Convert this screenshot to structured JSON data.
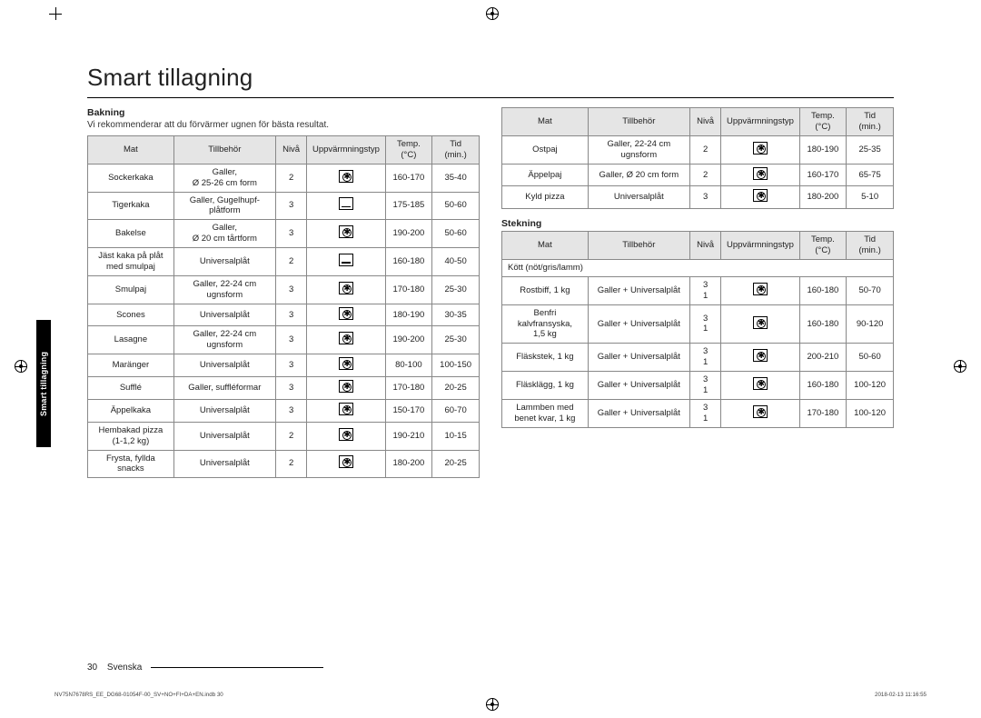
{
  "page": {
    "title": "Smart tillagning",
    "side_tab": "Smart tillagning",
    "page_number": "30",
    "language": "Svenska",
    "print_file": "NV75N7678RS_EE_DG68-01054F-00_SV+NO+FI+DA+EN.indb   30",
    "print_date": "2018-02-13   11:16:55"
  },
  "columns": {
    "mat": "Mat",
    "tillbehor": "Tillbehör",
    "niva": "Nivå",
    "uppvarmning": "Uppvärmningstyp",
    "temp": "Temp.",
    "temp_unit": "(°C)",
    "tid": "Tid",
    "tid_unit": "(min.)"
  },
  "icons": {
    "fan": "fan",
    "conv": "conventional"
  },
  "bakning": {
    "heading": "Bakning",
    "subtext": "Vi rekommenderar att du förvärmer ugnen för bästa resultat.",
    "rows": [
      {
        "mat": "Sockerkaka",
        "till": "Galler,\nØ 25-26 cm form",
        "niva": "2",
        "icon": "fan",
        "temp": "160-170",
        "tid": "35-40"
      },
      {
        "mat": "Tigerkaka",
        "till": "Galler, Gugelhupf-\nplåtform",
        "niva": "3",
        "icon": "conv",
        "temp": "175-185",
        "tid": "50-60"
      },
      {
        "mat": "Bakelse",
        "till": "Galler,\nØ 20 cm tårtform",
        "niva": "3",
        "icon": "fan",
        "temp": "190-200",
        "tid": "50-60"
      },
      {
        "mat": "Jäst kaka på plåt\nmed smulpaj",
        "till": "Universalplåt",
        "niva": "2",
        "icon": "conv",
        "temp": "160-180",
        "tid": "40-50"
      },
      {
        "mat": "Smulpaj",
        "till": "Galler, 22-24 cm\nugnsform",
        "niva": "3",
        "icon": "fan",
        "temp": "170-180",
        "tid": "25-30"
      },
      {
        "mat": "Scones",
        "till": "Universalplåt",
        "niva": "3",
        "icon": "fan",
        "temp": "180-190",
        "tid": "30-35"
      },
      {
        "mat": "Lasagne",
        "till": "Galler, 22-24 cm\nugnsform",
        "niva": "3",
        "icon": "fan",
        "temp": "190-200",
        "tid": "25-30"
      },
      {
        "mat": "Maränger",
        "till": "Universalplåt",
        "niva": "3",
        "icon": "fan",
        "temp": "80-100",
        "tid": "100-150"
      },
      {
        "mat": "Sufflé",
        "till": "Galler, suffléformar",
        "niva": "3",
        "icon": "fan",
        "temp": "170-180",
        "tid": "20-25"
      },
      {
        "mat": "Äppelkaka",
        "till": "Universalplåt",
        "niva": "3",
        "icon": "fan",
        "temp": "150-170",
        "tid": "60-70"
      },
      {
        "mat": "Hembakad pizza\n(1-1,2 kg)",
        "till": "Universalplåt",
        "niva": "2",
        "icon": "fan",
        "temp": "190-210",
        "tid": "10-15"
      },
      {
        "mat": "Frysta, fyllda\nsnacks",
        "till": "Universalplåt",
        "niva": "2",
        "icon": "fan",
        "temp": "180-200",
        "tid": "20-25"
      }
    ]
  },
  "bakning2": {
    "rows": [
      {
        "mat": "Ostpaj",
        "till": "Galler, 22-24 cm\nugnsform",
        "niva": "2",
        "icon": "fan",
        "temp": "180-190",
        "tid": "25-35"
      },
      {
        "mat": "Äppelpaj",
        "till": "Galler, Ø 20 cm form",
        "niva": "2",
        "icon": "fan",
        "temp": "160-170",
        "tid": "65-75"
      },
      {
        "mat": "Kyld pizza",
        "till": "Universalplåt",
        "niva": "3",
        "icon": "fan",
        "temp": "180-200",
        "tid": "5-10"
      }
    ]
  },
  "stekning": {
    "heading": "Stekning",
    "group_row": "Kött (nöt/gris/lamm)",
    "rows": [
      {
        "mat": "Rostbiff, 1 kg",
        "till": "Galler + Universalplåt",
        "niva": "3\n1",
        "icon": "fan",
        "temp": "160-180",
        "tid": "50-70"
      },
      {
        "mat": "Benfri\nkalvfransyska,\n1,5 kg",
        "till": "Galler + Universalplåt",
        "niva": "3\n1",
        "icon": "fan",
        "temp": "160-180",
        "tid": "90-120"
      },
      {
        "mat": "Fläskstek, 1 kg",
        "till": "Galler + Universalplåt",
        "niva": "3\n1",
        "icon": "fan",
        "temp": "200-210",
        "tid": "50-60"
      },
      {
        "mat": "Fläsklägg, 1 kg",
        "till": "Galler + Universalplåt",
        "niva": "3\n1",
        "icon": "fan",
        "temp": "160-180",
        "tid": "100-120"
      },
      {
        "mat": "Lammben med\nbenet kvar, 1 kg",
        "till": "Galler + Universalplåt",
        "niva": "3\n1",
        "icon": "fan",
        "temp": "170-180",
        "tid": "100-120"
      }
    ]
  }
}
